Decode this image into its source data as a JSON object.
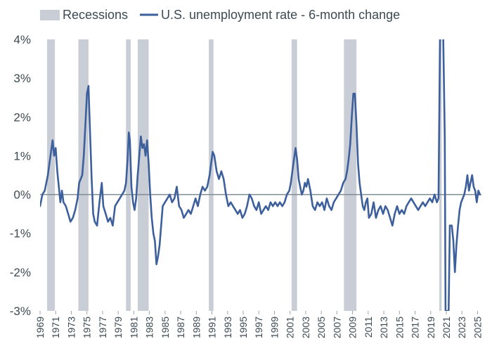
{
  "chart_data": {
    "type": "line",
    "title": "",
    "xlabel": "",
    "ylabel": "",
    "ylim": [
      -3,
      4
    ],
    "xlim": [
      1969,
      2025.5
    ],
    "grid": false,
    "legend_position": "top-left",
    "legend": {
      "recessions_label": "Recessions",
      "series_label": "U.S. unemployment rate - 6-month change"
    },
    "colors": {
      "line": "#3d5f9c",
      "recession": "#c9ced6",
      "zero_line": "#7f8b93",
      "text": "#3c4a52"
    },
    "y_ticks": [
      {
        "value": 4,
        "label": "4%"
      },
      {
        "value": 3,
        "label": "3%"
      },
      {
        "value": 2,
        "label": "2%"
      },
      {
        "value": 1,
        "label": "1%"
      },
      {
        "value": 0,
        "label": "0%"
      },
      {
        "value": -1,
        "label": "-1%"
      },
      {
        "value": -2,
        "label": "-2%"
      },
      {
        "value": -3,
        "label": "-3%"
      }
    ],
    "x_ticks": [
      "1969",
      "1971",
      "1973",
      "1975",
      "1977",
      "1979",
      "1981",
      "1983",
      "1985",
      "1987",
      "1989",
      "1991",
      "1993",
      "1995",
      "1997",
      "1999",
      "2001",
      "2003",
      "2005",
      "2007",
      "2009",
      "2011",
      "2013",
      "2015",
      "2017",
      "2019",
      "2021",
      "2023",
      "2025"
    ],
    "recessions": [
      {
        "start": 1969.9,
        "end": 1970.9
      },
      {
        "start": 1973.9,
        "end": 1975.2
      },
      {
        "start": 1980.0,
        "end": 1980.6
      },
      {
        "start": 1981.5,
        "end": 1982.9
      },
      {
        "start": 1990.6,
        "end": 1991.2
      },
      {
        "start": 2001.2,
        "end": 2001.9
      },
      {
        "start": 2007.9,
        "end": 2009.5
      },
      {
        "start": 2020.1,
        "end": 2020.4
      }
    ],
    "series": [
      {
        "values": [
          [
            1969.0,
            -0.3
          ],
          [
            1969.3,
            0.0
          ],
          [
            1969.6,
            0.1
          ],
          [
            1969.8,
            0.3
          ],
          [
            1970.0,
            0.5
          ],
          [
            1970.2,
            0.8
          ],
          [
            1970.4,
            1.1
          ],
          [
            1970.6,
            1.4
          ],
          [
            1970.8,
            1.0
          ],
          [
            1971.0,
            1.2
          ],
          [
            1971.2,
            0.6
          ],
          [
            1971.4,
            0.2
          ],
          [
            1971.6,
            -0.2
          ],
          [
            1971.8,
            0.1
          ],
          [
            1972.0,
            -0.2
          ],
          [
            1972.3,
            -0.3
          ],
          [
            1972.6,
            -0.5
          ],
          [
            1972.9,
            -0.7
          ],
          [
            1973.2,
            -0.6
          ],
          [
            1973.5,
            -0.4
          ],
          [
            1973.8,
            -0.1
          ],
          [
            1974.0,
            0.3
          ],
          [
            1974.2,
            0.4
          ],
          [
            1974.4,
            0.5
          ],
          [
            1974.6,
            1.0
          ],
          [
            1974.8,
            1.8
          ],
          [
            1975.0,
            2.6
          ],
          [
            1975.2,
            2.8
          ],
          [
            1975.4,
            1.6
          ],
          [
            1975.6,
            0.4
          ],
          [
            1975.8,
            -0.5
          ],
          [
            1976.0,
            -0.7
          ],
          [
            1976.3,
            -0.8
          ],
          [
            1976.6,
            -0.2
          ],
          [
            1976.9,
            0.3
          ],
          [
            1977.1,
            -0.3
          ],
          [
            1977.4,
            -0.5
          ],
          [
            1977.7,
            -0.7
          ],
          [
            1978.0,
            -0.6
          ],
          [
            1978.3,
            -0.8
          ],
          [
            1978.6,
            -0.3
          ],
          [
            1978.9,
            -0.2
          ],
          [
            1979.2,
            -0.1
          ],
          [
            1979.5,
            0.0
          ],
          [
            1979.8,
            0.1
          ],
          [
            1980.0,
            0.3
          ],
          [
            1980.2,
            0.9
          ],
          [
            1980.35,
            1.6
          ],
          [
            1980.5,
            1.4
          ],
          [
            1980.7,
            0.2
          ],
          [
            1980.9,
            -0.2
          ],
          [
            1981.1,
            -0.4
          ],
          [
            1981.3,
            -0.1
          ],
          [
            1981.5,
            0.5
          ],
          [
            1981.7,
            1.0
          ],
          [
            1981.9,
            1.5
          ],
          [
            1982.1,
            1.2
          ],
          [
            1982.3,
            1.3
          ],
          [
            1982.5,
            1.0
          ],
          [
            1982.7,
            1.4
          ],
          [
            1982.9,
            0.8
          ],
          [
            1983.1,
            0.0
          ],
          [
            1983.3,
            -0.6
          ],
          [
            1983.5,
            -1.0
          ],
          [
            1983.7,
            -1.2
          ],
          [
            1983.9,
            -1.8
          ],
          [
            1984.1,
            -1.6
          ],
          [
            1984.3,
            -1.3
          ],
          [
            1984.5,
            -0.8
          ],
          [
            1984.7,
            -0.3
          ],
          [
            1985.0,
            -0.2
          ],
          [
            1985.3,
            -0.1
          ],
          [
            1985.6,
            0.0
          ],
          [
            1985.9,
            -0.2
          ],
          [
            1986.2,
            -0.1
          ],
          [
            1986.5,
            0.2
          ],
          [
            1986.8,
            -0.3
          ],
          [
            1987.1,
            -0.4
          ],
          [
            1987.4,
            -0.6
          ],
          [
            1987.7,
            -0.5
          ],
          [
            1988.0,
            -0.4
          ],
          [
            1988.3,
            -0.5
          ],
          [
            1988.6,
            -0.3
          ],
          [
            1988.9,
            -0.1
          ],
          [
            1989.2,
            -0.3
          ],
          [
            1989.5,
            0.0
          ],
          [
            1989.8,
            0.2
          ],
          [
            1990.1,
            0.1
          ],
          [
            1990.4,
            0.2
          ],
          [
            1990.7,
            0.5
          ],
          [
            1990.9,
            0.8
          ],
          [
            1991.1,
            1.1
          ],
          [
            1991.3,
            1.0
          ],
          [
            1991.6,
            0.6
          ],
          [
            1991.9,
            0.4
          ],
          [
            1992.2,
            0.6
          ],
          [
            1992.5,
            0.4
          ],
          [
            1992.8,
            0.0
          ],
          [
            1993.1,
            -0.3
          ],
          [
            1993.4,
            -0.2
          ],
          [
            1993.7,
            -0.3
          ],
          [
            1994.0,
            -0.4
          ],
          [
            1994.3,
            -0.5
          ],
          [
            1994.6,
            -0.4
          ],
          [
            1994.9,
            -0.6
          ],
          [
            1995.2,
            -0.5
          ],
          [
            1995.5,
            -0.3
          ],
          [
            1995.8,
            0.0
          ],
          [
            1996.1,
            -0.1
          ],
          [
            1996.4,
            -0.3
          ],
          [
            1996.7,
            -0.4
          ],
          [
            1997.0,
            -0.2
          ],
          [
            1997.3,
            -0.5
          ],
          [
            1997.6,
            -0.4
          ],
          [
            1997.9,
            -0.3
          ],
          [
            1998.2,
            -0.4
          ],
          [
            1998.5,
            -0.2
          ],
          [
            1998.8,
            -0.3
          ],
          [
            1999.1,
            -0.2
          ],
          [
            1999.4,
            -0.3
          ],
          [
            1999.7,
            -0.2
          ],
          [
            2000.0,
            -0.3
          ],
          [
            2000.3,
            -0.2
          ],
          [
            2000.6,
            0.0
          ],
          [
            2000.9,
            0.1
          ],
          [
            2001.1,
            0.3
          ],
          [
            2001.3,
            0.6
          ],
          [
            2001.5,
            0.9
          ],
          [
            2001.7,
            1.2
          ],
          [
            2001.9,
            0.9
          ],
          [
            2002.1,
            0.4
          ],
          [
            2002.3,
            0.2
          ],
          [
            2002.5,
            0.0
          ],
          [
            2002.7,
            0.1
          ],
          [
            2002.9,
            0.3
          ],
          [
            2003.1,
            0.2
          ],
          [
            2003.3,
            0.4
          ],
          [
            2003.6,
            0.1
          ],
          [
            2003.9,
            -0.3
          ],
          [
            2004.2,
            -0.4
          ],
          [
            2004.5,
            -0.2
          ],
          [
            2004.8,
            -0.3
          ],
          [
            2005.1,
            -0.2
          ],
          [
            2005.4,
            -0.4
          ],
          [
            2005.7,
            -0.1
          ],
          [
            2006.0,
            -0.3
          ],
          [
            2006.3,
            -0.4
          ],
          [
            2006.6,
            -0.2
          ],
          [
            2006.9,
            -0.1
          ],
          [
            2007.2,
            0.0
          ],
          [
            2007.5,
            0.1
          ],
          [
            2007.8,
            0.3
          ],
          [
            2008.1,
            0.4
          ],
          [
            2008.3,
            0.6
          ],
          [
            2008.5,
            0.9
          ],
          [
            2008.7,
            1.3
          ],
          [
            2008.9,
            2.0
          ],
          [
            2009.1,
            2.6
          ],
          [
            2009.3,
            2.6
          ],
          [
            2009.5,
            1.8
          ],
          [
            2009.7,
            0.8
          ],
          [
            2009.9,
            0.3
          ],
          [
            2010.1,
            0.0
          ],
          [
            2010.3,
            -0.3
          ],
          [
            2010.5,
            -0.4
          ],
          [
            2010.7,
            -0.2
          ],
          [
            2010.9,
            -0.1
          ],
          [
            2011.1,
            -0.6
          ],
          [
            2011.4,
            -0.5
          ],
          [
            2011.7,
            -0.2
          ],
          [
            2012.0,
            -0.6
          ],
          [
            2012.3,
            -0.4
          ],
          [
            2012.6,
            -0.3
          ],
          [
            2012.9,
            -0.5
          ],
          [
            2013.2,
            -0.3
          ],
          [
            2013.5,
            -0.4
          ],
          [
            2013.8,
            -0.6
          ],
          [
            2014.1,
            -0.8
          ],
          [
            2014.4,
            -0.5
          ],
          [
            2014.7,
            -0.3
          ],
          [
            2015.0,
            -0.5
          ],
          [
            2015.3,
            -0.4
          ],
          [
            2015.6,
            -0.5
          ],
          [
            2015.9,
            -0.3
          ],
          [
            2016.2,
            -0.2
          ],
          [
            2016.5,
            -0.1
          ],
          [
            2016.8,
            -0.2
          ],
          [
            2017.1,
            -0.3
          ],
          [
            2017.4,
            -0.4
          ],
          [
            2017.7,
            -0.3
          ],
          [
            2018.0,
            -0.2
          ],
          [
            2018.3,
            -0.3
          ],
          [
            2018.6,
            -0.2
          ],
          [
            2018.9,
            -0.1
          ],
          [
            2019.2,
            -0.2
          ],
          [
            2019.5,
            0.0
          ],
          [
            2019.8,
            -0.2
          ],
          [
            2020.0,
            -0.1
          ],
          [
            2020.2,
            4.2
          ],
          [
            2020.4,
            4.2
          ],
          [
            2020.6,
            4.2
          ],
          [
            2020.8,
            1.5
          ],
          [
            2020.9,
            -3.0
          ],
          [
            2021.1,
            -3.0
          ],
          [
            2021.3,
            -3.0
          ],
          [
            2021.45,
            -0.8
          ],
          [
            2021.7,
            -0.8
          ],
          [
            2021.9,
            -1.2
          ],
          [
            2022.1,
            -2.0
          ],
          [
            2022.3,
            -1.3
          ],
          [
            2022.5,
            -0.8
          ],
          [
            2022.7,
            -0.4
          ],
          [
            2022.9,
            -0.2
          ],
          [
            2023.1,
            -0.1
          ],
          [
            2023.3,
            0.0
          ],
          [
            2023.5,
            0.2
          ],
          [
            2023.7,
            0.5
          ],
          [
            2023.9,
            0.1
          ],
          [
            2024.1,
            0.3
          ],
          [
            2024.3,
            0.5
          ],
          [
            2024.5,
            0.2
          ],
          [
            2024.7,
            0.1
          ],
          [
            2024.9,
            -0.2
          ],
          [
            2025.1,
            0.1
          ],
          [
            2025.3,
            0.0
          ]
        ]
      }
    ]
  }
}
